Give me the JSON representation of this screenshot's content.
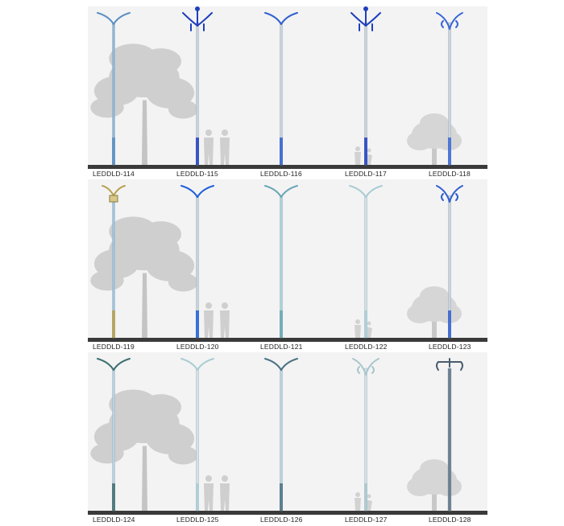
{
  "rows": [
    {
      "models": [
        {
          "code": "LEDDLD-114",
          "color": "#8fb6d6",
          "accent": "#5b8fc4",
          "style": "swoosh"
        },
        {
          "code": "LEDDLD-115",
          "color": "#c9d3dc",
          "accent": "#1f3fbf",
          "style": "crown"
        },
        {
          "code": "LEDDLD-116",
          "color": "#c9d3dc",
          "accent": "#2f5fd0",
          "style": "swoosh"
        },
        {
          "code": "LEDDLD-117",
          "color": "#c9d3dc",
          "accent": "#1f3fbf",
          "style": "crown"
        },
        {
          "code": "LEDDLD-118",
          "color": "#c9d3dc",
          "accent": "#3a66d6",
          "style": "curl"
        }
      ]
    },
    {
      "models": [
        {
          "code": "LEDDLD-119",
          "color": "#9fc3dd",
          "accent": "#b8a050",
          "style": "lantern"
        },
        {
          "code": "LEDDLD-120",
          "color": "#c9d3dc",
          "accent": "#1f5fd8",
          "style": "swoosh"
        },
        {
          "code": "LEDDLD-121",
          "color": "#a9d4d8",
          "accent": "#6aa7b5",
          "style": "swoosh"
        },
        {
          "code": "LEDDLD-122",
          "color": "#cfe2e4",
          "accent": "#a9cdd3",
          "style": "swoosh"
        },
        {
          "code": "LEDDLD-123",
          "color": "#c9d3dc",
          "accent": "#2f5fd0",
          "style": "curl"
        }
      ]
    },
    {
      "models": [
        {
          "code": "LEDDLD-124",
          "color": "#b9d2df",
          "accent": "#3e6f70",
          "style": "swoosh"
        },
        {
          "code": "LEDDLD-125",
          "color": "#d2e3e6",
          "accent": "#a9cdd3",
          "style": "swoosh"
        },
        {
          "code": "LEDDLD-126",
          "color": "#b9d2df",
          "accent": "#4b7185",
          "style": "swoosh"
        },
        {
          "code": "LEDDLD-127",
          "color": "#d2e3e6",
          "accent": "#a9c6cc",
          "style": "curl"
        },
        {
          "code": "LEDDLD-128",
          "color": "#6b7f91",
          "accent": "#4a5c6e",
          "style": "crossbar"
        }
      ]
    }
  ]
}
